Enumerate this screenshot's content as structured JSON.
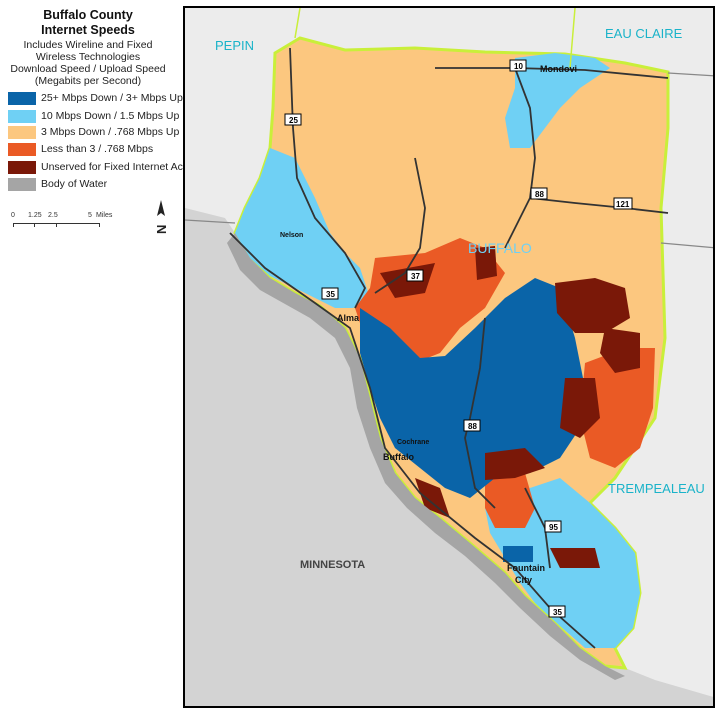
{
  "legend": {
    "title_line1": "Buffalo County",
    "title_line2": "Internet Speeds",
    "subtitle_lines": [
      "Includes Wireline and Fixed",
      "Wireless Technologies",
      "Download Speed / Upload Speed",
      "(Megabits per Second)"
    ],
    "items": [
      {
        "label": "25+ Mbps Down / 3+ Mbps Up",
        "color": "#0a64a8"
      },
      {
        "label": "10 Mbps Down / 1.5 Mbps Up",
        "color": "#6fd0f4"
      },
      {
        "label": "3 Mbps Down / .768 Mbps Up",
        "color": "#fcc77f"
      },
      {
        "label": "Less than 3  / .768 Mbps",
        "color": "#ea5a25"
      },
      {
        "label": "Unserved for Fixed Internet Access",
        "color": "#7a1808"
      },
      {
        "label": "Body of Water",
        "color": "#a5a5a5"
      }
    ],
    "scale": {
      "ticks": [
        "0",
        "1.25",
        "2.5",
        "5"
      ],
      "unit": "Miles"
    },
    "north_label": "N"
  },
  "map": {
    "regions": {
      "pepin": "PEPIN",
      "eau_claire": "EAU CLAIRE",
      "buffalo": "BUFFALO",
      "trempealeau": "TREMPEALEAU",
      "minnesota": "MINNESOTA"
    },
    "places": {
      "mondovi": "Mondovi",
      "nelson": "Nelson",
      "alma": "Alma",
      "cochrane": "Cochrane",
      "buffalo_city": "Buffalo",
      "fountain_line1": "Fountain",
      "fountain_line2": "City"
    },
    "routes": {
      "r10": "10",
      "r25": "25",
      "r88_north": "88",
      "r121": "121",
      "r37": "37",
      "r35_alma": "35",
      "r88_south": "88",
      "r95": "95",
      "r35_fountain": "35"
    },
    "colors": {
      "land_outside": "#ececec",
      "river_land": "#d0d0d0",
      "county_border": "#c9ef3a",
      "label_cyan": "#1ab3c9"
    }
  }
}
